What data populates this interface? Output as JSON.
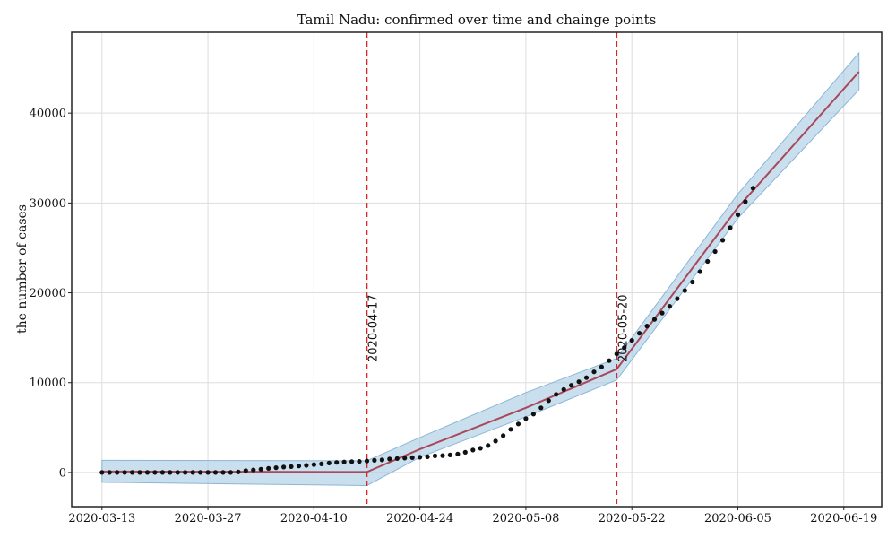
{
  "chart_data": {
    "type": "line",
    "title": "Tamil Nadu: confirmed over time and chainge points",
    "xlabel": "",
    "ylabel": "the number of cases",
    "x_axis": {
      "kind": "date",
      "range": [
        "2020-03-09",
        "2020-06-24"
      ],
      "tick_labels": [
        "2020-03-13",
        "2020-03-27",
        "2020-04-10",
        "2020-04-24",
        "2020-05-08",
        "2020-05-22",
        "2020-06-05",
        "2020-06-19"
      ]
    },
    "y_axis": {
      "range": [
        -3800,
        49000
      ],
      "tick_values": [
        0,
        10000,
        20000,
        30000,
        40000
      ],
      "tick_labels": [
        "0",
        "10000",
        "20000",
        "30000",
        "40000"
      ]
    },
    "grid": true,
    "series": [
      {
        "kind": "scatter",
        "color": "#111111",
        "points": [
          [
            "2020-03-13",
            0
          ],
          [
            "2020-03-14",
            0
          ],
          [
            "2020-03-15",
            0
          ],
          [
            "2020-03-16",
            0
          ],
          [
            "2020-03-17",
            0
          ],
          [
            "2020-03-18",
            0
          ],
          [
            "2020-03-19",
            0
          ],
          [
            "2020-03-20",
            0
          ],
          [
            "2020-03-21",
            0
          ],
          [
            "2020-03-22",
            0
          ],
          [
            "2020-03-23",
            0
          ],
          [
            "2020-03-24",
            0
          ],
          [
            "2020-03-25",
            0
          ],
          [
            "2020-03-26",
            0
          ],
          [
            "2020-03-27",
            0
          ],
          [
            "2020-03-28",
            0
          ],
          [
            "2020-03-29",
            0
          ],
          [
            "2020-03-30",
            0
          ],
          [
            "2020-03-31",
            60
          ],
          [
            "2020-04-01",
            200
          ],
          [
            "2020-04-02",
            280
          ],
          [
            "2020-04-03",
            360
          ],
          [
            "2020-04-04",
            450
          ],
          [
            "2020-04-05",
            530
          ],
          [
            "2020-04-06",
            600
          ],
          [
            "2020-04-07",
            650
          ],
          [
            "2020-04-08",
            720
          ],
          [
            "2020-04-09",
            790
          ],
          [
            "2020-04-10",
            880
          ],
          [
            "2020-04-11",
            950
          ],
          [
            "2020-04-12",
            1050
          ],
          [
            "2020-04-13",
            1120
          ],
          [
            "2020-04-14",
            1170
          ],
          [
            "2020-04-15",
            1200
          ],
          [
            "2020-04-16",
            1230
          ],
          [
            "2020-04-17",
            1280
          ],
          [
            "2020-04-18",
            1350
          ],
          [
            "2020-04-19",
            1400
          ],
          [
            "2020-04-20",
            1500
          ],
          [
            "2020-04-21",
            1550
          ],
          [
            "2020-04-22",
            1600
          ],
          [
            "2020-04-23",
            1650
          ],
          [
            "2020-04-24",
            1700
          ],
          [
            "2020-04-25",
            1750
          ],
          [
            "2020-04-26",
            1850
          ],
          [
            "2020-04-27",
            1880
          ],
          [
            "2020-04-28",
            1950
          ],
          [
            "2020-04-29",
            2050
          ],
          [
            "2020-04-30",
            2250
          ],
          [
            "2020-05-01",
            2500
          ],
          [
            "2020-05-02",
            2700
          ],
          [
            "2020-05-03",
            3000
          ],
          [
            "2020-05-04",
            3500
          ],
          [
            "2020-05-05",
            4100
          ],
          [
            "2020-05-06",
            4800
          ],
          [
            "2020-05-07",
            5400
          ],
          [
            "2020-05-08",
            6000
          ],
          [
            "2020-05-09",
            6500
          ],
          [
            "2020-05-10",
            7200
          ],
          [
            "2020-05-11",
            8000
          ],
          [
            "2020-05-12",
            8700
          ],
          [
            "2020-05-13",
            9250
          ],
          [
            "2020-05-14",
            9700
          ],
          [
            "2020-05-15",
            10100
          ],
          [
            "2020-05-16",
            10550
          ],
          [
            "2020-05-17",
            11200
          ],
          [
            "2020-05-18",
            11750
          ],
          [
            "2020-05-19",
            12450
          ],
          [
            "2020-05-20",
            13200
          ],
          [
            "2020-05-21",
            13900
          ],
          [
            "2020-05-22",
            14700
          ],
          [
            "2020-05-23",
            15500
          ],
          [
            "2020-05-24",
            16300
          ],
          [
            "2020-05-25",
            17050
          ],
          [
            "2020-05-26",
            17750
          ],
          [
            "2020-05-27",
            18500
          ],
          [
            "2020-05-28",
            19350
          ],
          [
            "2020-05-29",
            20250
          ],
          [
            "2020-05-30",
            21200
          ],
          [
            "2020-05-31",
            22350
          ],
          [
            "2020-06-01",
            23500
          ],
          [
            "2020-06-02",
            24600
          ],
          [
            "2020-06-03",
            25850
          ],
          [
            "2020-06-04",
            27250
          ],
          [
            "2020-06-05",
            28700
          ],
          [
            "2020-06-06",
            30150
          ],
          [
            "2020-06-07",
            31650
          ]
        ]
      },
      {
        "kind": "line",
        "color": "#a8485a",
        "points": [
          [
            "2020-03-13",
            100
          ],
          [
            "2020-04-17",
            50
          ],
          [
            "2020-04-24",
            2600
          ],
          [
            "2020-05-08",
            7200
          ],
          [
            "2020-05-20",
            11500
          ],
          [
            "2020-06-05",
            29500
          ],
          [
            "2020-06-21",
            44600
          ]
        ]
      },
      {
        "kind": "band",
        "color": "#9ec4e0",
        "lower": [
          [
            "2020-03-13",
            -1100
          ],
          [
            "2020-04-17",
            -1450
          ],
          [
            "2020-04-24",
            1700
          ],
          [
            "2020-05-08",
            6200
          ],
          [
            "2020-05-20",
            10300
          ],
          [
            "2020-06-05",
            28300
          ],
          [
            "2020-06-21",
            42600
          ]
        ],
        "upper": [
          [
            "2020-03-13",
            1350
          ],
          [
            "2020-04-17",
            1300
          ],
          [
            "2020-04-24",
            3900
          ],
          [
            "2020-05-08",
            8900
          ],
          [
            "2020-05-20",
            12700
          ],
          [
            "2020-06-05",
            31000
          ],
          [
            "2020-06-21",
            46700
          ]
        ]
      }
    ],
    "change_points": [
      {
        "date": "2020-04-17",
        "label": "2020-04-17",
        "color": "#d62728"
      },
      {
        "date": "2020-05-20",
        "label": "2020-05-20",
        "color": "#d62728"
      }
    ]
  }
}
